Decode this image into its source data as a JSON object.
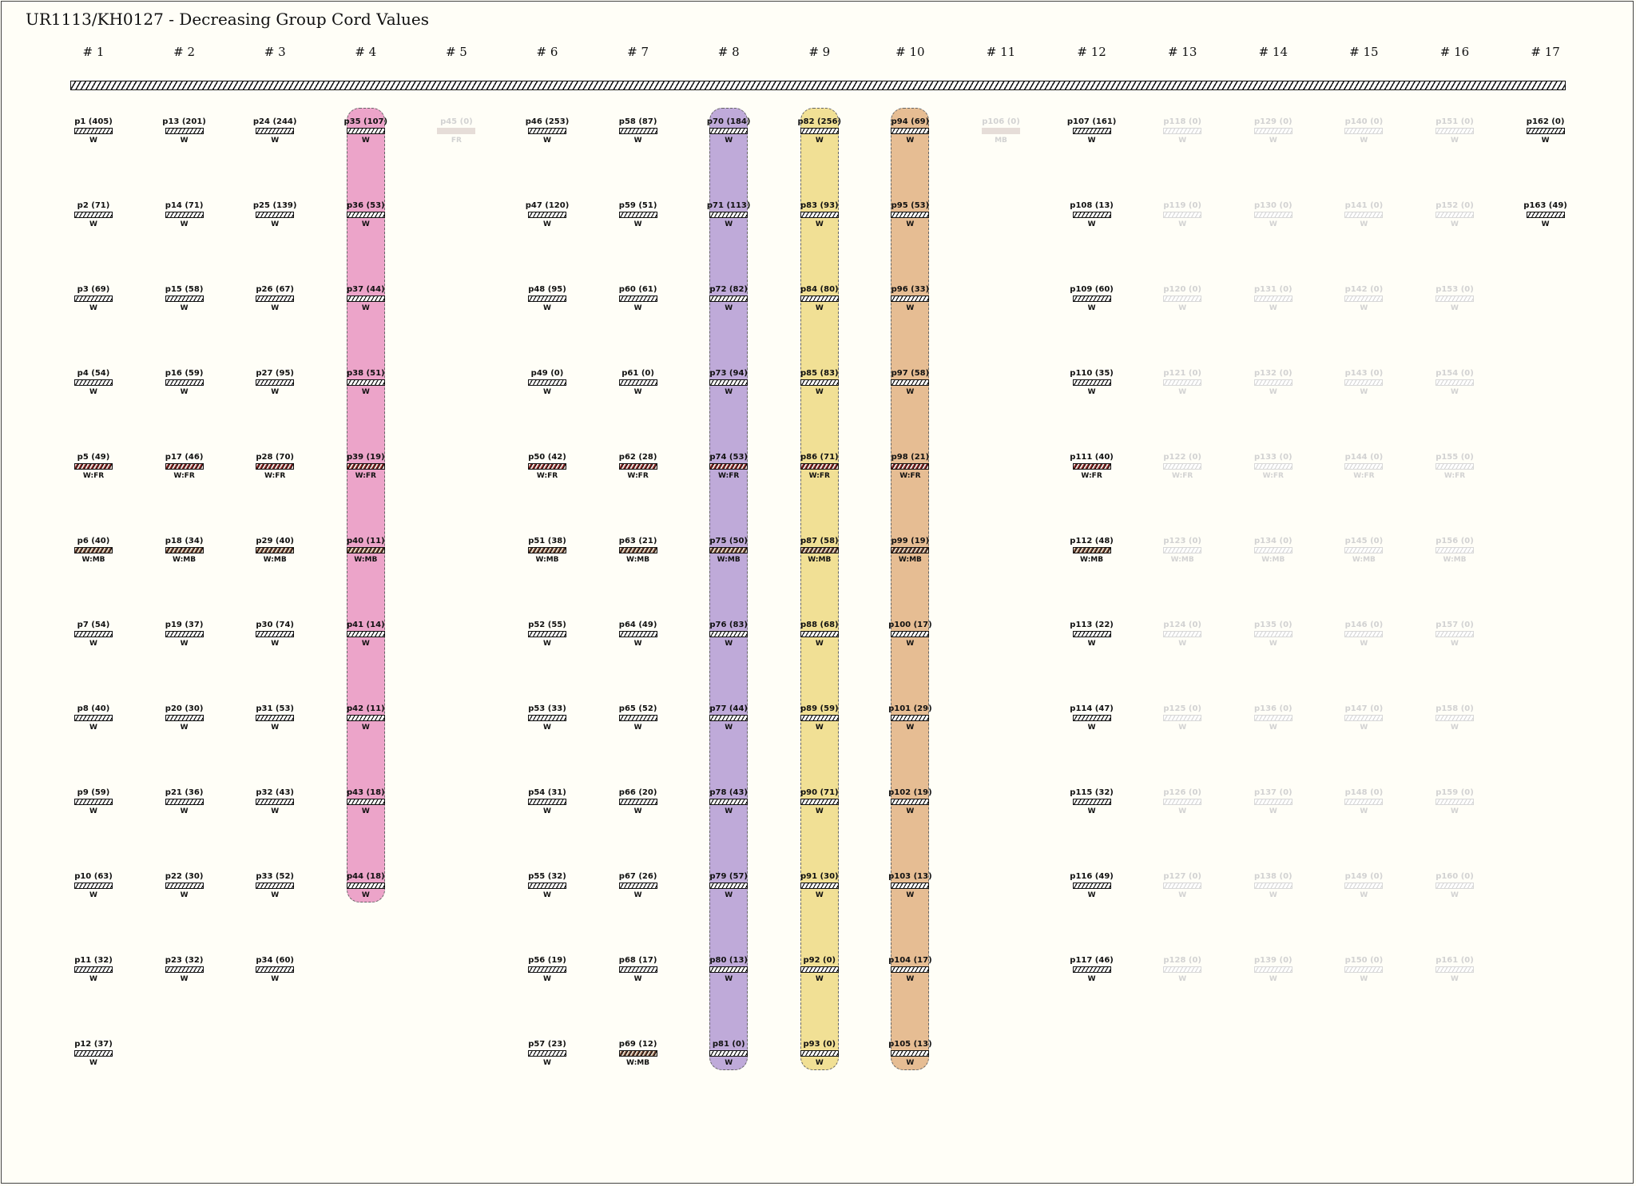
{
  "title": "UR1113/KH0127 - Decreasing Group Cord Values",
  "colors": {
    "background": "#fffef7",
    "band_pink": "#eca4c9",
    "band_purple": "#bfaad9",
    "band_yellow": "#f1e095",
    "band_orange": "#e6bd93"
  },
  "groups": [
    {
      "label": "# 1",
      "band": null,
      "cords": [
        {
          "label": "p1 (405)",
          "color": "W",
          "type": "W"
        },
        {
          "label": "p2 (71)",
          "color": "W",
          "type": "W"
        },
        {
          "label": "p3 (69)",
          "color": "W",
          "type": "W"
        },
        {
          "label": "p4 (54)",
          "color": "W",
          "type": "W"
        },
        {
          "label": "p5 (49)",
          "color": "W:FR",
          "type": "FR"
        },
        {
          "label": "p6 (40)",
          "color": "W:MB",
          "type": "MB"
        },
        {
          "label": "p7 (54)",
          "color": "W",
          "type": "W"
        },
        {
          "label": "p8 (40)",
          "color": "W",
          "type": "W"
        },
        {
          "label": "p9 (59)",
          "color": "W",
          "type": "W"
        },
        {
          "label": "p10 (63)",
          "color": "W",
          "type": "W"
        },
        {
          "label": "p11 (32)",
          "color": "W",
          "type": "W"
        },
        {
          "label": "p12 (37)",
          "color": "W",
          "type": "W"
        }
      ]
    },
    {
      "label": "# 2",
      "band": null,
      "cords": [
        {
          "label": "p13 (201)",
          "color": "W",
          "type": "W"
        },
        {
          "label": "p14 (71)",
          "color": "W",
          "type": "W"
        },
        {
          "label": "p15 (58)",
          "color": "W",
          "type": "W"
        },
        {
          "label": "p16 (59)",
          "color": "W",
          "type": "W"
        },
        {
          "label": "p17 (46)",
          "color": "W:FR",
          "type": "FR"
        },
        {
          "label": "p18 (34)",
          "color": "W:MB",
          "type": "MB"
        },
        {
          "label": "p19 (37)",
          "color": "W",
          "type": "W"
        },
        {
          "label": "p20 (30)",
          "color": "W",
          "type": "W"
        },
        {
          "label": "p21 (36)",
          "color": "W",
          "type": "W"
        },
        {
          "label": "p22 (30)",
          "color": "W",
          "type": "W"
        },
        {
          "label": "p23 (32)",
          "color": "W",
          "type": "W"
        }
      ]
    },
    {
      "label": "# 3",
      "band": null,
      "cords": [
        {
          "label": "p24 (244)",
          "color": "W",
          "type": "W"
        },
        {
          "label": "p25 (139)",
          "color": "W",
          "type": "W"
        },
        {
          "label": "p26 (67)",
          "color": "W",
          "type": "W"
        },
        {
          "label": "p27 (95)",
          "color": "W",
          "type": "W"
        },
        {
          "label": "p28 (70)",
          "color": "W:FR",
          "type": "FR"
        },
        {
          "label": "p29 (40)",
          "color": "W:MB",
          "type": "MB"
        },
        {
          "label": "p30 (74)",
          "color": "W",
          "type": "W"
        },
        {
          "label": "p31 (53)",
          "color": "W",
          "type": "W"
        },
        {
          "label": "p32 (43)",
          "color": "W",
          "type": "W"
        },
        {
          "label": "p33 (52)",
          "color": "W",
          "type": "W"
        },
        {
          "label": "p34 (60)",
          "color": "W",
          "type": "W"
        }
      ]
    },
    {
      "label": "# 4",
      "band": "#eca4c9",
      "cords": [
        {
          "label": "p35 (107)",
          "color": "W",
          "type": "W"
        },
        {
          "label": "p36 (53)",
          "color": "W",
          "type": "W"
        },
        {
          "label": "p37 (44)",
          "color": "W",
          "type": "W"
        },
        {
          "label": "p38 (51)",
          "color": "W",
          "type": "W"
        },
        {
          "label": "p39 (19)",
          "color": "W:FR",
          "type": "FR"
        },
        {
          "label": "p40 (11)",
          "color": "W:MB",
          "type": "MB"
        },
        {
          "label": "p41 (14)",
          "color": "W",
          "type": "W"
        },
        {
          "label": "p42 (11)",
          "color": "W",
          "type": "W"
        },
        {
          "label": "p43 (18)",
          "color": "W",
          "type": "W"
        },
        {
          "label": "p44 (18)",
          "color": "W",
          "type": "W"
        }
      ]
    },
    {
      "label": "# 5",
      "band": null,
      "cords": [
        {
          "label": "p45 (0)",
          "color": "FR",
          "type": "FR",
          "faint": true,
          "solid": true
        }
      ]
    },
    {
      "label": "# 6",
      "band": null,
      "cords": [
        {
          "label": "p46 (253)",
          "color": "W",
          "type": "W"
        },
        {
          "label": "p47 (120)",
          "color": "W",
          "type": "W"
        },
        {
          "label": "p48 (95)",
          "color": "W",
          "type": "W"
        },
        {
          "label": "p49 (0)",
          "color": "W",
          "type": "W"
        },
        {
          "label": "p50 (42)",
          "color": "W:FR",
          "type": "FR"
        },
        {
          "label": "p51 (38)",
          "color": "W:MB",
          "type": "MB"
        },
        {
          "label": "p52 (55)",
          "color": "W",
          "type": "W"
        },
        {
          "label": "p53 (33)",
          "color": "W",
          "type": "W"
        },
        {
          "label": "p54 (31)",
          "color": "W",
          "type": "W"
        },
        {
          "label": "p55 (32)",
          "color": "W",
          "type": "W"
        },
        {
          "label": "p56 (19)",
          "color": "W",
          "type": "W"
        },
        {
          "label": "p57 (23)",
          "color": "W",
          "type": "W"
        }
      ]
    },
    {
      "label": "# 7",
      "band": null,
      "cords": [
        {
          "label": "p58 (87)",
          "color": "W",
          "type": "W"
        },
        {
          "label": "p59 (51)",
          "color": "W",
          "type": "W"
        },
        {
          "label": "p60 (61)",
          "color": "W",
          "type": "W"
        },
        {
          "label": "p61 (0)",
          "color": "W",
          "type": "W"
        },
        {
          "label": "p62 (28)",
          "color": "W:FR",
          "type": "FR"
        },
        {
          "label": "p63 (21)",
          "color": "W:MB",
          "type": "MB"
        },
        {
          "label": "p64 (49)",
          "color": "W",
          "type": "W"
        },
        {
          "label": "p65 (52)",
          "color": "W",
          "type": "W"
        },
        {
          "label": "p66 (20)",
          "color": "W",
          "type": "W"
        },
        {
          "label": "p67 (26)",
          "color": "W",
          "type": "W"
        },
        {
          "label": "p68 (17)",
          "color": "W",
          "type": "W"
        },
        {
          "label": "p69 (12)",
          "color": "W:MB",
          "type": "MB"
        }
      ]
    },
    {
      "label": "# 8",
      "band": "#bfaad9",
      "cords": [
        {
          "label": "p70 (184)",
          "color": "W",
          "type": "W"
        },
        {
          "label": "p71 (113)",
          "color": "W",
          "type": "W"
        },
        {
          "label": "p72 (82)",
          "color": "W",
          "type": "W"
        },
        {
          "label": "p73 (94)",
          "color": "W",
          "type": "W"
        },
        {
          "label": "p74 (53)",
          "color": "W:FR",
          "type": "FR"
        },
        {
          "label": "p75 (50)",
          "color": "W:MB",
          "type": "MB"
        },
        {
          "label": "p76 (83)",
          "color": "W",
          "type": "W"
        },
        {
          "label": "p77 (44)",
          "color": "W",
          "type": "W"
        },
        {
          "label": "p78 (43)",
          "color": "W",
          "type": "W"
        },
        {
          "label": "p79 (57)",
          "color": "W",
          "type": "W"
        },
        {
          "label": "p80 (13)",
          "color": "W",
          "type": "W"
        },
        {
          "label": "p81 (0)",
          "color": "W",
          "type": "W"
        }
      ]
    },
    {
      "label": "# 9",
      "band": "#f1e095",
      "cords": [
        {
          "label": "p82 (256)",
          "color": "W",
          "type": "W"
        },
        {
          "label": "p83 (93)",
          "color": "W",
          "type": "W"
        },
        {
          "label": "p84 (80)",
          "color": "W",
          "type": "W"
        },
        {
          "label": "p85 (83)",
          "color": "W",
          "type": "W"
        },
        {
          "label": "p86 (71)",
          "color": "W:FR",
          "type": "FR"
        },
        {
          "label": "p87 (58)",
          "color": "W:MB",
          "type": "MB"
        },
        {
          "label": "p88 (68)",
          "color": "W",
          "type": "W"
        },
        {
          "label": "p89 (59)",
          "color": "W",
          "type": "W"
        },
        {
          "label": "p90 (71)",
          "color": "W",
          "type": "W"
        },
        {
          "label": "p91 (30)",
          "color": "W",
          "type": "W"
        },
        {
          "label": "p92 (0)",
          "color": "W",
          "type": "W"
        },
        {
          "label": "p93 (0)",
          "color": "W",
          "type": "W"
        }
      ]
    },
    {
      "label": "# 10",
      "band": "#e6bd93",
      "cords": [
        {
          "label": "p94 (69)",
          "color": "W",
          "type": "W"
        },
        {
          "label": "p95 (53)",
          "color": "W",
          "type": "W"
        },
        {
          "label": "p96 (33)",
          "color": "W",
          "type": "W"
        },
        {
          "label": "p97 (58)",
          "color": "W",
          "type": "W"
        },
        {
          "label": "p98 (21)",
          "color": "W:FR",
          "type": "FR"
        },
        {
          "label": "p99 (19)",
          "color": "W:MB",
          "type": "MB"
        },
        {
          "label": "p100 (17)",
          "color": "W",
          "type": "W"
        },
        {
          "label": "p101 (29)",
          "color": "W",
          "type": "W"
        },
        {
          "label": "p102 (19)",
          "color": "W",
          "type": "W"
        },
        {
          "label": "p103 (13)",
          "color": "W",
          "type": "W"
        },
        {
          "label": "p104 (17)",
          "color": "W",
          "type": "W"
        },
        {
          "label": "p105 (13)",
          "color": "W",
          "type": "W"
        }
      ]
    },
    {
      "label": "# 11",
      "band": null,
      "cords": [
        {
          "label": "p106 (0)",
          "color": "MB",
          "type": "MB",
          "faint": true,
          "solid": true
        }
      ]
    },
    {
      "label": "# 12",
      "band": null,
      "cords": [
        {
          "label": "p107 (161)",
          "color": "W",
          "type": "W"
        },
        {
          "label": "p108 (13)",
          "color": "W",
          "type": "W"
        },
        {
          "label": "p109 (60)",
          "color": "W",
          "type": "W"
        },
        {
          "label": "p110 (35)",
          "color": "W",
          "type": "W"
        },
        {
          "label": "p111 (40)",
          "color": "W:FR",
          "type": "FR"
        },
        {
          "label": "p112 (48)",
          "color": "W:MB",
          "type": "MB"
        },
        {
          "label": "p113 (22)",
          "color": "W",
          "type": "W"
        },
        {
          "label": "p114 (47)",
          "color": "W",
          "type": "W"
        },
        {
          "label": "p115 (32)",
          "color": "W",
          "type": "W"
        },
        {
          "label": "p116 (49)",
          "color": "W",
          "type": "W"
        },
        {
          "label": "p117 (46)",
          "color": "W",
          "type": "W"
        }
      ]
    },
    {
      "label": "# 13",
      "band": null,
      "cords": [
        {
          "label": "p118 (0)",
          "color": "W",
          "type": "W",
          "faint": true
        },
        {
          "label": "p119 (0)",
          "color": "W",
          "type": "W",
          "faint": true
        },
        {
          "label": "p120 (0)",
          "color": "W",
          "type": "W",
          "faint": true
        },
        {
          "label": "p121 (0)",
          "color": "W",
          "type": "W",
          "faint": true
        },
        {
          "label": "p122 (0)",
          "color": "W:FR",
          "type": "FR",
          "faint": true
        },
        {
          "label": "p123 (0)",
          "color": "W:MB",
          "type": "MB",
          "faint": true
        },
        {
          "label": "p124 (0)",
          "color": "W",
          "type": "W",
          "faint": true
        },
        {
          "label": "p125 (0)",
          "color": "W",
          "type": "W",
          "faint": true
        },
        {
          "label": "p126 (0)",
          "color": "W",
          "type": "W",
          "faint": true
        },
        {
          "label": "p127 (0)",
          "color": "W",
          "type": "W",
          "faint": true
        },
        {
          "label": "p128 (0)",
          "color": "W",
          "type": "W",
          "faint": true
        }
      ]
    },
    {
      "label": "# 14",
      "band": null,
      "cords": [
        {
          "label": "p129 (0)",
          "color": "W",
          "type": "W",
          "faint": true
        },
        {
          "label": "p130 (0)",
          "color": "W",
          "type": "W",
          "faint": true
        },
        {
          "label": "p131 (0)",
          "color": "W",
          "type": "W",
          "faint": true
        },
        {
          "label": "p132 (0)",
          "color": "W",
          "type": "W",
          "faint": true
        },
        {
          "label": "p133 (0)",
          "color": "W:FR",
          "type": "FR",
          "faint": true
        },
        {
          "label": "p134 (0)",
          "color": "W:MB",
          "type": "MB",
          "faint": true
        },
        {
          "label": "p135 (0)",
          "color": "W",
          "type": "W",
          "faint": true
        },
        {
          "label": "p136 (0)",
          "color": "W",
          "type": "W",
          "faint": true
        },
        {
          "label": "p137 (0)",
          "color": "W",
          "type": "W",
          "faint": true
        },
        {
          "label": "p138 (0)",
          "color": "W",
          "type": "W",
          "faint": true
        },
        {
          "label": "p139 (0)",
          "color": "W",
          "type": "W",
          "faint": true
        }
      ]
    },
    {
      "label": "# 15",
      "band": null,
      "cords": [
        {
          "label": "p140 (0)",
          "color": "W",
          "type": "W",
          "faint": true
        },
        {
          "label": "p141 (0)",
          "color": "W",
          "type": "W",
          "faint": true
        },
        {
          "label": "p142 (0)",
          "color": "W",
          "type": "W",
          "faint": true
        },
        {
          "label": "p143 (0)",
          "color": "W",
          "type": "W",
          "faint": true
        },
        {
          "label": "p144 (0)",
          "color": "W:FR",
          "type": "FR",
          "faint": true
        },
        {
          "label": "p145 (0)",
          "color": "W:MB",
          "type": "MB",
          "faint": true
        },
        {
          "label": "p146 (0)",
          "color": "W",
          "type": "W",
          "faint": true
        },
        {
          "label": "p147 (0)",
          "color": "W",
          "type": "W",
          "faint": true
        },
        {
          "label": "p148 (0)",
          "color": "W",
          "type": "W",
          "faint": true
        },
        {
          "label": "p149 (0)",
          "color": "W",
          "type": "W",
          "faint": true
        },
        {
          "label": "p150 (0)",
          "color": "W",
          "type": "W",
          "faint": true
        }
      ]
    },
    {
      "label": "# 16",
      "band": null,
      "cords": [
        {
          "label": "p151 (0)",
          "color": "W",
          "type": "W",
          "faint": true
        },
        {
          "label": "p152 (0)",
          "color": "W",
          "type": "W",
          "faint": true
        },
        {
          "label": "p153 (0)",
          "color": "W",
          "type": "W",
          "faint": true
        },
        {
          "label": "p154 (0)",
          "color": "W",
          "type": "W",
          "faint": true
        },
        {
          "label": "p155 (0)",
          "color": "W:FR",
          "type": "FR",
          "faint": true
        },
        {
          "label": "p156 (0)",
          "color": "W:MB",
          "type": "MB",
          "faint": true
        },
        {
          "label": "p157 (0)",
          "color": "W",
          "type": "W",
          "faint": true
        },
        {
          "label": "p158 (0)",
          "color": "W",
          "type": "W",
          "faint": true
        },
        {
          "label": "p159 (0)",
          "color": "W",
          "type": "W",
          "faint": true
        },
        {
          "label": "p160 (0)",
          "color": "W",
          "type": "W",
          "faint": true
        },
        {
          "label": "p161 (0)",
          "color": "W",
          "type": "W",
          "faint": true
        }
      ]
    },
    {
      "label": "# 17",
      "band": null,
      "cords": [
        {
          "label": "p162 (0)",
          "color": "W",
          "type": "W"
        },
        {
          "label": "p163 (49)",
          "color": "W",
          "type": "W"
        }
      ]
    }
  ]
}
